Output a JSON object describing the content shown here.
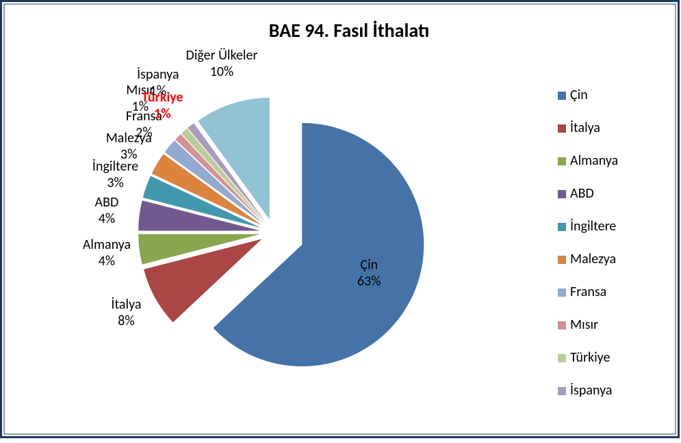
{
  "chart_data": {
    "type": "pie",
    "title": "BAE 94. Fasıl İthalatı",
    "categories": [
      "Çin",
      "İtalya",
      "Almanya",
      "ABD",
      "İngiltere",
      "Malezya",
      "Fransa",
      "Mısır",
      "Türkiye",
      "İspanya",
      "Diğer Ülkeler"
    ],
    "values": [
      63,
      8,
      4,
      4,
      3,
      3,
      2,
      1,
      1,
      1,
      10
    ],
    "value_labels": [
      "63%",
      "8%",
      "4%",
      "4%",
      "3%",
      "3%",
      "2%",
      "1%",
      "1%",
      "1%",
      "10%"
    ],
    "colors": [
      "#4572a7",
      "#aa4643",
      "#89a54e",
      "#71588f",
      "#4198af",
      "#db843d",
      "#93a9cf",
      "#d19392",
      "#b9cd96",
      "#a99bbd",
      "#92c3d4"
    ],
    "legend": [
      "Çin",
      "İtalya",
      "Almanya",
      "ABD",
      "İngiltere",
      "Malezya",
      "Fransa",
      "Mısır",
      "Türkiye",
      "İspanya"
    ],
    "highlight": {
      "category": "Türkiye",
      "color": "#ff0000"
    }
  }
}
